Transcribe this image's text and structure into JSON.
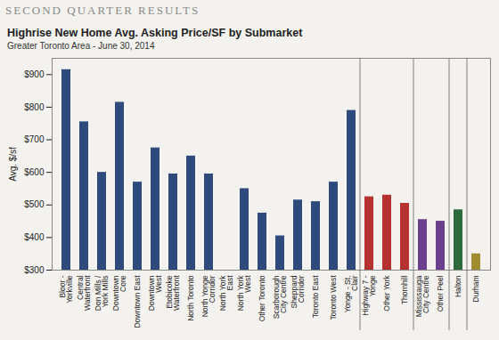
{
  "header": "SECOND QUARTER RESULTS",
  "chart_data": {
    "type": "bar",
    "title": "Highrise New Home Avg. Asking Price/SF by Submarket",
    "subtitle": "Greater Toronto Area - June 30, 2014",
    "y_label": "Avg. $/sf",
    "categories": [
      "Bloor - Yorkville",
      "Central Waterfront",
      "Don Mills / York Mills",
      "Downtown Core",
      "Downtown East",
      "Downtown West",
      "Etobicoke Waterfront",
      "North Toronto",
      "North Yonge Corridor",
      "North York East",
      "North York West",
      "Other Toronto",
      "Scarborough City Centre",
      "Sheppard Corridor",
      "Toronto East",
      "Toronto West",
      "Yonge - St. Clair",
      "Highway 7 - Yonge",
      "Other York",
      "Thornhill",
      "Mississauga City Centre",
      "Other Peel",
      "Halton",
      "Durham"
    ],
    "values": [
      915,
      755,
      600,
      815,
      570,
      675,
      595,
      650,
      595,
      null,
      550,
      475,
      405,
      515,
      510,
      570,
      790,
      525,
      530,
      505,
      455,
      450,
      485,
      350
    ],
    "colors": [
      "#2f4b7c",
      "#2f4b7c",
      "#2f4b7c",
      "#2f4b7c",
      "#2f4b7c",
      "#2f4b7c",
      "#2f4b7c",
      "#2f4b7c",
      "#2f4b7c",
      "#2f4b7c",
      "#2f4b7c",
      "#2f4b7c",
      "#2f4b7c",
      "#2f4b7c",
      "#2f4b7c",
      "#2f4b7c",
      "#2f4b7c",
      "#b53230",
      "#b53230",
      "#b53230",
      "#6c3f8c",
      "#6c3f8c",
      "#2e6b3a",
      "#a38b2f"
    ],
    "ylim": [
      300,
      950
    ],
    "yticks": [
      {
        "value": 300,
        "label": "$300"
      },
      {
        "value": 400,
        "label": "$400"
      },
      {
        "value": 500,
        "label": "$500"
      },
      {
        "value": 600,
        "label": "$600"
      },
      {
        "value": 700,
        "label": "$700"
      },
      {
        "value": 800,
        "label": "$800"
      },
      {
        "value": 900,
        "label": "$900"
      }
    ],
    "grid": false
  }
}
